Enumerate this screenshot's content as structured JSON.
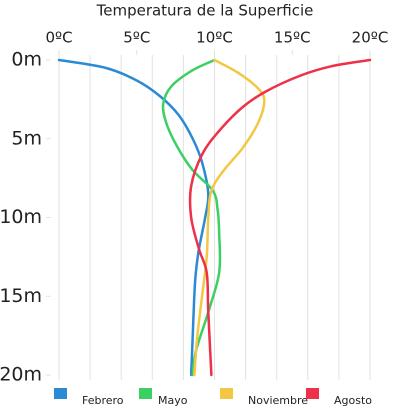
{
  "chart_data": {
    "type": "line",
    "title": "Temperatura de la Superficie",
    "xlim": [
      0,
      20
    ],
    "ylim": [
      0,
      20
    ],
    "y_inverted": true,
    "x_axis_position": "top",
    "xticks": [
      {
        "value": 0,
        "label": "0ºC"
      },
      {
        "value": 5,
        "label": "5ºC"
      },
      {
        "value": 10,
        "label": "10ºC"
      },
      {
        "value": 15,
        "label": "15ºC"
      },
      {
        "value": 20,
        "label": "20ºC"
      }
    ],
    "yticks": [
      {
        "value": 0,
        "label": "0m"
      },
      {
        "value": 5,
        "label": "5m"
      },
      {
        "value": 10,
        "label": "10m"
      },
      {
        "value": 15,
        "label": "15m"
      },
      {
        "value": 20,
        "label": "20m"
      }
    ],
    "xgrid": [
      0,
      2,
      4,
      6,
      8,
      10,
      12,
      14,
      16,
      18,
      20
    ],
    "grid": true,
    "legend": "bottom",
    "series": [
      {
        "name": "Febrero",
        "color": "#2a8ad4",
        "x": [
          0,
          3,
          5,
          6.5,
          7.7,
          8.6,
          9.2,
          9.6,
          9.4,
          9,
          8.8,
          8.7,
          8.6,
          8.5
        ],
        "values": [
          0,
          0.5,
          1.3,
          2.3,
          3.5,
          5,
          6.5,
          8.5,
          10,
          12,
          13.5,
          15,
          17.5,
          20
        ]
      },
      {
        "name": "Mayo",
        "color": "#3ccf64",
        "x": [
          10,
          8.5,
          7.2,
          6.7,
          6.9,
          7.6,
          8.6,
          9.9,
          10.2,
          10.3,
          10.3,
          9.6,
          8.8,
          8.6
        ],
        "values": [
          0,
          0.7,
          1.7,
          2.8,
          4,
          5.5,
          7,
          8.3,
          9.5,
          11,
          13.5,
          16,
          18.5,
          20
        ]
      },
      {
        "name": "Noviembre",
        "color": "#f2c744",
        "x": [
          10,
          11.5,
          12.8,
          13.2,
          12.8,
          11.8,
          10.6,
          9.8,
          9.6,
          9.5,
          9.2,
          8.9,
          8.7
        ],
        "values": [
          0,
          0.8,
          1.8,
          2.6,
          4,
          5.6,
          7,
          8.3,
          10,
          12.5,
          15,
          17.5,
          20
        ]
      },
      {
        "name": "Agosto",
        "color": "#ee3048",
        "x": [
          20,
          17.5,
          15.5,
          13.3,
          11.8,
          10.3,
          9.2,
          8.5,
          8.5,
          9,
          9.5,
          9.6,
          9.8
        ],
        "values": [
          0,
          0.4,
          1,
          2,
          3,
          4.5,
          6,
          8,
          10,
          12,
          13.5,
          16,
          20
        ]
      }
    ]
  }
}
